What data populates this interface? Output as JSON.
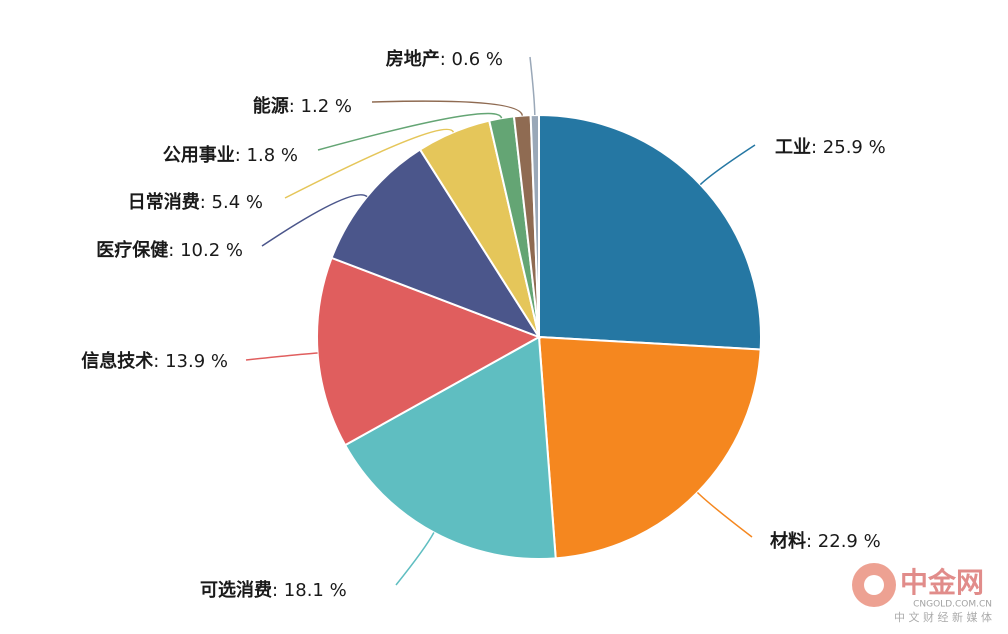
{
  "chart_data": {
    "type": "pie",
    "categories": [
      "工业",
      "材料",
      "可选消费",
      "信息技术",
      "医疗保健",
      "日常消费",
      "公用事业",
      "能源",
      "房地产"
    ],
    "values": [
      25.9,
      22.9,
      18.1,
      13.9,
      10.2,
      5.4,
      1.8,
      1.2,
      0.6
    ],
    "value_labels": [
      ": 25.9 %",
      ": 22.9 %",
      ": 18.1 %",
      ": 13.9 %",
      ": 10.2 %",
      ": 5.4 %",
      ": 1.8 %",
      ": 1.2 %",
      ": 0.6 %"
    ],
    "colors": [
      "#2577a3",
      "#f5871f",
      "#5fbec1",
      "#e05e5e",
      "#4b568b",
      "#e5c65a",
      "#64a574",
      "#8f6b52",
      "#9aa8b8"
    ]
  },
  "watermark": {
    "name": "中金网",
    "domain": "CNGOLD.COM.CN",
    "slogan": "中 文 财 经 新 媒 体"
  }
}
